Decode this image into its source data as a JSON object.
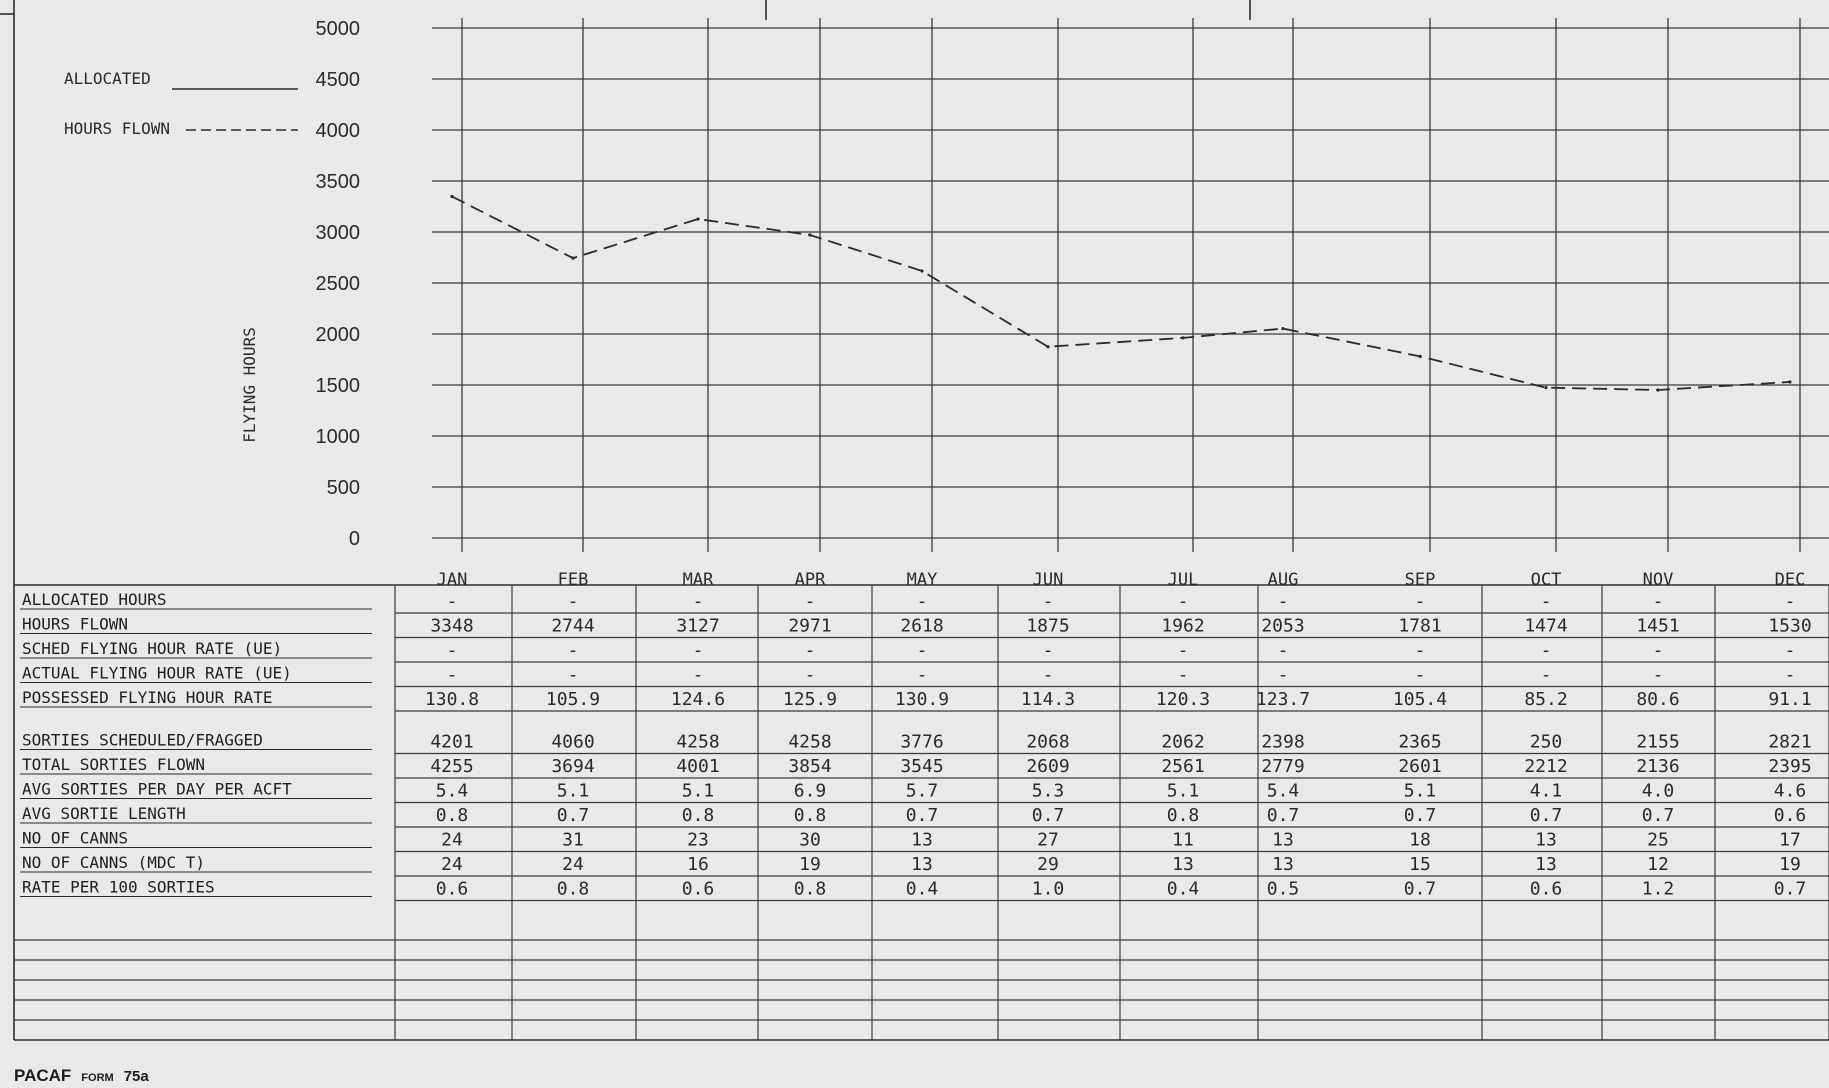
{
  "chart_data": {
    "type": "line",
    "ylabel": "FLYING HOURS",
    "ylim": [
      0,
      5000
    ],
    "y_ticks": [
      5000,
      4500,
      4000,
      3500,
      3000,
      2500,
      2000,
      1500,
      1000,
      500,
      0
    ],
    "categories": [
      "JAN",
      "FEB",
      "MAR",
      "APR",
      "MAY",
      "JUN",
      "JUL",
      "AUG",
      "SEP",
      "OCT",
      "NOV",
      "DEC"
    ],
    "legend": [
      {
        "label": "ALLOCATED",
        "style": "solid"
      },
      {
        "label": "HOURS FLOWN",
        "style": "dashed"
      }
    ],
    "series": [
      {
        "name": "HOURS FLOWN",
        "style": "dashed",
        "values": [
          3348,
          2744,
          3127,
          2971,
          2618,
          1875,
          1962,
          2053,
          1781,
          1474,
          1451,
          1530
        ]
      }
    ],
    "grid": true
  },
  "table": {
    "groups": [
      {
        "rows": [
          {
            "label": "ALLOCATED HOURS",
            "values": [
              "-",
              "-",
              "-",
              "-",
              "-",
              "-",
              "-",
              "-",
              "-",
              "-",
              "-",
              "-"
            ]
          },
          {
            "label": "HOURS FLOWN",
            "values": [
              "3348",
              "2744",
              "3127",
              "2971",
              "2618",
              "1875",
              "1962",
              "2053",
              "1781",
              "1474",
              "1451",
              "1530"
            ]
          },
          {
            "label": "SCHED FLYING HOUR RATE (UE)",
            "values": [
              "-",
              "-",
              "-",
              "-",
              "-",
              "-",
              "-",
              "-",
              "-",
              "-",
              "-",
              "-"
            ]
          },
          {
            "label": "ACTUAL FLYING HOUR RATE (UE)",
            "values": [
              "-",
              "-",
              "-",
              "-",
              "-",
              "-",
              "-",
              "-",
              "-",
              "-",
              "-",
              "-"
            ]
          },
          {
            "label": "POSSESSED FLYING HOUR RATE",
            "values": [
              "130.8",
              "105.9",
              "124.6",
              "125.9",
              "130.9",
              "114.3",
              "120.3",
              "123.7",
              "105.4",
              "85.2",
              "80.6",
              "91.1"
            ]
          }
        ]
      },
      {
        "rows": [
          {
            "label": "SORTIES SCHEDULED/FRAGGED",
            "values": [
              "4201",
              "4060",
              "4258",
              "4258",
              "3776",
              "2068",
              "2062",
              "2398",
              "2365",
              "250",
              "2155",
              "2821"
            ]
          },
          {
            "label": "TOTAL SORTIES FLOWN",
            "values": [
              "4255",
              "3694",
              "4001",
              "3854",
              "3545",
              "2609",
              "2561",
              "2779",
              "2601",
              "2212",
              "2136",
              "2395"
            ]
          },
          {
            "label": "AVG SORTIES PER DAY PER ACFT",
            "values": [
              "5.4",
              "5.1",
              "5.1",
              "6.9",
              "5.7",
              "5.3",
              "5.1",
              "5.4",
              "5.1",
              "4.1",
              "4.0",
              "4.6"
            ]
          },
          {
            "label": "AVG SORTIE LENGTH",
            "values": [
              "0.8",
              "0.7",
              "0.8",
              "0.8",
              "0.7",
              "0.7",
              "0.8",
              "0.7",
              "0.7",
              "0.7",
              "0.7",
              "0.6"
            ]
          },
          {
            "label": "NO OF CANNS",
            "values": [
              "24",
              "31",
              "23",
              "30",
              "13",
              "27",
              "11",
              "13",
              "18",
              "13",
              "25",
              "17"
            ]
          },
          {
            "label": "NO OF CANNS (MDC T)",
            "values": [
              "24",
              "24",
              "16",
              "19",
              "13",
              "29",
              "13",
              "13",
              "15",
              "13",
              "12",
              "19"
            ]
          },
          {
            "label": "RATE PER 100 SORTIES",
            "values": [
              "0.6",
              "0.8",
              "0.6",
              "0.8",
              "0.4",
              "1.0",
              "0.4",
              "0.5",
              "0.7",
              "0.6",
              "1.2",
              "0.7"
            ]
          }
        ]
      }
    ]
  },
  "footer": {
    "org": "PACAF",
    "form_label": "FORM",
    "form_number": "75a"
  },
  "colors": {
    "paper": "#e9e9e7",
    "ink": "#2a2a2a",
    "grid": "#3a3a3a"
  }
}
